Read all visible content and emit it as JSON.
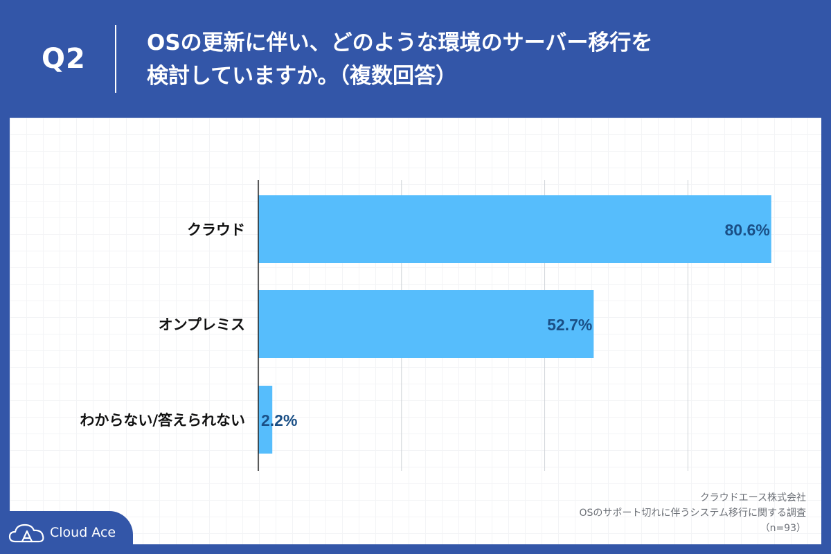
{
  "header": {
    "question_label": "Q2",
    "title_line1": "OSの更新に伴い、どのような環境のサーバー移行を",
    "title_line2": "検討していますか。（複数回答）"
  },
  "chart_data": {
    "type": "bar",
    "orientation": "horizontal",
    "categories": [
      "クラウド",
      "オンプレミス",
      "わからない/答えられない"
    ],
    "values": [
      80.6,
      52.7,
      2.2
    ],
    "value_labels": [
      "80.6%",
      "52.7%",
      "2.2%"
    ],
    "xlim": [
      0,
      90
    ],
    "grid": true,
    "bar_color": "#56bdfc",
    "label_color": "#1a4f86"
  },
  "footnote": {
    "company": "クラウドエース株式会社",
    "survey": "OSのサポート切れに伴うシステム移行に関する調査",
    "sample": "（n=93）"
  },
  "logo": {
    "text": "Cloud Ace",
    "icon": "cloud-icon"
  },
  "colors": {
    "brand_blue": "#3356a8",
    "panel": "#ffffff",
    "axis": "#222222",
    "gridline": "#cfd3d8"
  }
}
